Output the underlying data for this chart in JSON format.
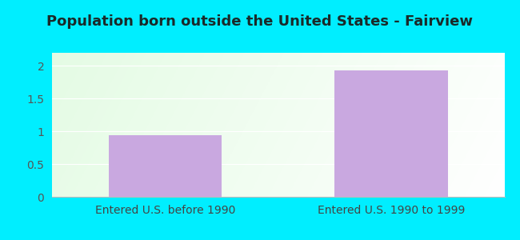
{
  "title": "Population born outside the United States - Fairview",
  "categories": [
    "Entered U.S. before 1990",
    "Entered U.S. 1990 to 1999"
  ],
  "values": [
    0.94,
    1.93
  ],
  "bar_color": "#c9a8e0",
  "background_outer": "#00eeff",
  "ylim": [
    0,
    2.2
  ],
  "yticks": [
    0,
    0.5,
    1,
    1.5,
    2
  ],
  "title_fontsize": 13,
  "tick_fontsize": 10,
  "xlabel_fontsize": 10,
  "title_color": "#1a2a2a"
}
